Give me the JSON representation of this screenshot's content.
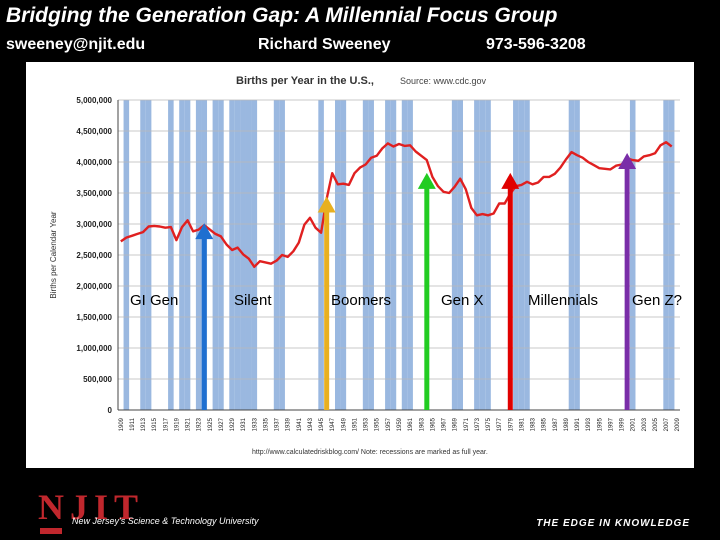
{
  "header": {
    "title": "Bridging the Generation Gap: A Millennial Focus Group",
    "email": "sweeney@njit.edu",
    "name": "Richard Sweeney",
    "phone": "973-596-3208"
  },
  "footer": {
    "logo_text": "NJIT",
    "university": "New Jersey's Science & Technology University",
    "tagline": "THE EDGE IN KNOWLEDGE"
  },
  "chart_data": {
    "type": "line",
    "title": "Births per Year in the U.S.,",
    "source": "Source: www.cdc.gov",
    "ylabel": "Births per Calendar Year",
    "xlabel": "",
    "xlim": [
      1909,
      2010
    ],
    "ylim": [
      0,
      5000000
    ],
    "yticks": [
      "0",
      "500,000",
      "1,000,000",
      "1,500,000",
      "2,000,000",
      "2,500,000",
      "3,000,000",
      "3,500,000",
      "4,000,000",
      "4,500,000",
      "5,000,000"
    ],
    "xticks": [
      "1909",
      "1911",
      "1913",
      "1915",
      "1917",
      "1919",
      "1921",
      "1923",
      "1925",
      "1927",
      "1929",
      "1931",
      "1933",
      "1935",
      "1937",
      "1939",
      "1941",
      "1943",
      "1945",
      "1947",
      "1949",
      "1951",
      "1953",
      "1955",
      "1957",
      "1959",
      "1961",
      "1963",
      "1965",
      "1967",
      "1969",
      "1971",
      "1973",
      "1975",
      "1977",
      "1979",
      "1981",
      "1983",
      "1985",
      "1987",
      "1989",
      "1991",
      "1993",
      "1995",
      "1997",
      "1999",
      "2001",
      "2003",
      "2005",
      "2007",
      "2009"
    ],
    "grid": true,
    "line_color": "#e02020",
    "recession_color": "#9ab8e0",
    "footnote": "http://www.calculatedriskblog.com/    Note: recessions are marked as full year.",
    "series": [
      {
        "x": [
          1909,
          1910,
          1911,
          1912,
          1913,
          1914,
          1915,
          1916,
          1917,
          1918,
          1919,
          1920,
          1921,
          1922,
          1923,
          1924,
          1925,
          1926,
          1927,
          1928,
          1929,
          1930,
          1931,
          1932,
          1933,
          1934,
          1935,
          1936,
          1937,
          1938,
          1939,
          1940,
          1941,
          1942,
          1943,
          1944,
          1945,
          1946,
          1947,
          1948,
          1949,
          1950,
          1951,
          1952,
          1953,
          1954,
          1955,
          1956,
          1957,
          1958,
          1959,
          1960,
          1961,
          1962,
          1963,
          1964,
          1965,
          1966,
          1967,
          1968,
          1969,
          1970,
          1971,
          1972,
          1973,
          1974,
          1975,
          1976,
          1977,
          1978,
          1979,
          1980,
          1981,
          1982,
          1983,
          1984,
          1985,
          1986,
          1987,
          1988,
          1989,
          1990,
          1991,
          1992,
          1993,
          1994,
          1995,
          1996,
          1997,
          1998,
          1999,
          2000,
          2001,
          2002,
          2003,
          2004,
          2005,
          2006,
          2007,
          2008
        ],
        "values": [
          2720000,
          2780000,
          2810000,
          2840000,
          2870000,
          2960000,
          2970000,
          2960000,
          2940000,
          2950000,
          2740000,
          2950000,
          3060000,
          2880000,
          2910000,
          2980000,
          2910000,
          2840000,
          2800000,
          2670000,
          2580000,
          2620000,
          2510000,
          2440000,
          2310000,
          2400000,
          2380000,
          2360000,
          2410000,
          2500000,
          2470000,
          2560000,
          2700000,
          2990000,
          3100000,
          2940000,
          2860000,
          3410000,
          3820000,
          3640000,
          3650000,
          3630000,
          3820000,
          3910000,
          3960000,
          4070000,
          4100000,
          4220000,
          4300000,
          4250000,
          4290000,
          4260000,
          4270000,
          4170000,
          4100000,
          4030000,
          3760000,
          3610000,
          3520000,
          3500000,
          3600000,
          3730000,
          3560000,
          3260000,
          3140000,
          3160000,
          3140000,
          3170000,
          3330000,
          3330000,
          3490000,
          3610000,
          3630000,
          3680000,
          3640000,
          3670000,
          3760000,
          3760000,
          3810000,
          3910000,
          4040000,
          4160000,
          4110000,
          4070000,
          4000000,
          3950000,
          3900000,
          3890000,
          3880000,
          3940000,
          3960000,
          4060000,
          4030000,
          4020000,
          4090000,
          4110000,
          4140000,
          4270000,
          4320000,
          4250000
        ]
      }
    ],
    "recession_years": [
      1910,
      1913,
      1914,
      1918,
      1920,
      1921,
      1923,
      1924,
      1926,
      1927,
      1929,
      1930,
      1931,
      1932,
      1933,
      1937,
      1938,
      1945,
      1948,
      1949,
      1953,
      1954,
      1957,
      1958,
      1960,
      1961,
      1969,
      1970,
      1973,
      1974,
      1975,
      1980,
      1981,
      1982,
      1990,
      1991,
      2001,
      2007,
      2008
    ],
    "arrows": [
      {
        "x": 1924,
        "value": 2950000,
        "color": "#1f6fd0",
        "label": "GI Gen"
      },
      {
        "x": 1946,
        "value": 3380000,
        "color": "#e8b020",
        "label": "Silent"
      },
      {
        "x": 1964,
        "value": 3760000,
        "color": "#22cc22",
        "label": "Boomers"
      },
      {
        "x": 1979,
        "value": 3760000,
        "color": "#e00000",
        "label": "Gen X"
      },
      {
        "x": 2000,
        "value": 4080000,
        "color": "#7a2ea8",
        "label": "Millennials"
      }
    ],
    "extra_label": "Gen Z?"
  }
}
